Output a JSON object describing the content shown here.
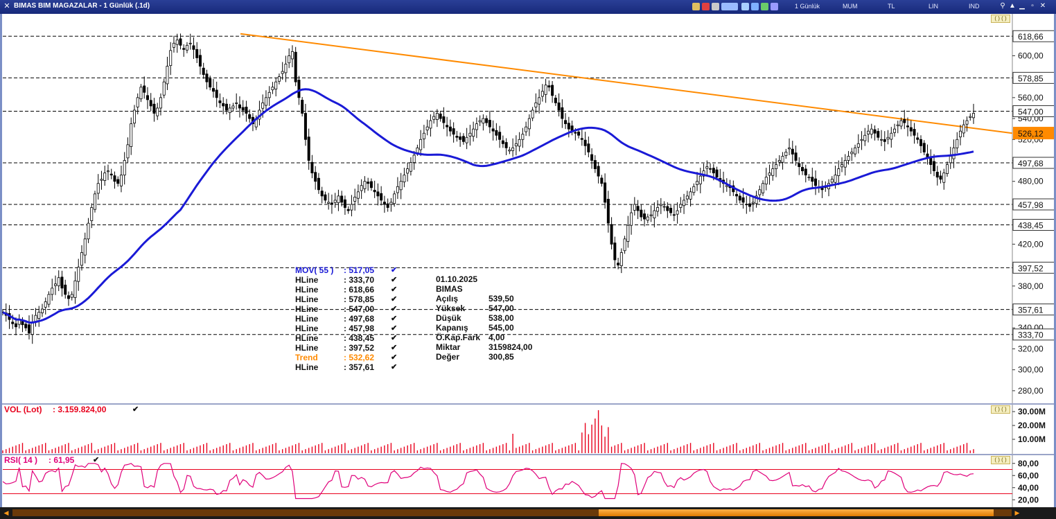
{
  "window": {
    "title": "BIMAS BIM MAGAZALAR - 1 Günlük (.1d)",
    "period_label": "1 Günlük",
    "chart_style": "MUM",
    "currency": "TL",
    "scale": "LIN",
    "ind_label": "IND"
  },
  "colors": {
    "price_up": "#000000",
    "mov": "#1a1ad6",
    "trend": "#ff8a00",
    "hline": "#000000",
    "volume": "#e8001c",
    "rsi": "#e0007a",
    "rsi_band": "#e8001c",
    "title_bar": "#17297a"
  },
  "legend": {
    "mov": {
      "name": "MOV( 55 )",
      "value": ": 517,05"
    },
    "hlines": [
      {
        "name": "HLine",
        "value": ": 333,70"
      },
      {
        "name": "HLine",
        "value": ": 618,66"
      },
      {
        "name": "HLine",
        "value": ": 578,85"
      },
      {
        "name": "HLine",
        "value": ": 547,00"
      },
      {
        "name": "HLine",
        "value": ": 497,68"
      },
      {
        "name": "HLine",
        "value": ": 457,98"
      },
      {
        "name": "HLine",
        "value": ": 438,45"
      },
      {
        "name": "HLine",
        "value": ": 397,52"
      }
    ],
    "trend": {
      "name": "Trend",
      "value": ": 532,62"
    },
    "hline_last": {
      "name": "HLine",
      "value": ": 357,61"
    }
  },
  "ohlc": {
    "date": "01.10.2025",
    "symbol": "BIMAS",
    "rows": [
      {
        "k": "Açılış",
        "v": "539,50"
      },
      {
        "k": "Yüksek",
        "v": "547,00"
      },
      {
        "k": "Düşük",
        "v": "538,00"
      },
      {
        "k": "Kapanış",
        "v": "545,00"
      },
      {
        "k": "Ö.Kap.Fark",
        "v": "4,00"
      },
      {
        "k": "Miktar",
        "v": "3159824,00"
      },
      {
        "k": "Değer",
        "v": "300,85"
      }
    ]
  },
  "volume_pane": {
    "label": "VOL (Lot)",
    "value": ": 3.159.824,00",
    "ticks": [
      "30.00M",
      "20.00M",
      "10.00M"
    ]
  },
  "rsi_pane": {
    "label": "RSI( 14 )",
    "value": ": 61,95",
    "ticks": [
      "80,00",
      "60,00",
      "40,00",
      "20,00"
    ]
  },
  "chart_data": {
    "type": "candlestick",
    "title": "BIMAS BIM MAGAZALAR - 1 Günlük (.1d)",
    "price_axis_ticks": [
      "600,00",
      "560,00",
      "540,00",
      "520,00",
      "500,00",
      "480,00",
      "420,00",
      "400,00",
      "380,00",
      "340,00",
      "320,00",
      "300,00",
      "280,00"
    ],
    "ylim": [
      268,
      640
    ],
    "hlines": [
      618.66,
      578.85,
      547.0,
      497.68,
      457.98,
      438.45,
      397.52,
      357.61,
      333.7
    ],
    "hline_labels": [
      "618,66",
      "578,85",
      "547,00",
      "497,68",
      "457,98",
      "438,45",
      "397,52",
      "357,61",
      "333,70"
    ],
    "current_price_label": "526,12",
    "trend_line": {
      "start": 621,
      "end": 526
    },
    "mov55_current": 517.05,
    "last_candle": {
      "open": 539.5,
      "high": 547.0,
      "low": 538.0,
      "close": 545.0
    },
    "close_path": [
      355,
      352,
      348,
      344,
      341,
      348,
      343,
      340,
      335,
      345,
      352,
      355,
      358,
      365,
      372,
      378,
      382,
      388,
      378,
      372,
      368,
      372,
      385,
      398,
      412,
      425,
      440,
      455,
      468,
      478,
      482,
      488,
      490,
      486,
      480,
      478,
      486,
      500,
      515,
      535,
      548,
      560,
      570,
      565,
      558,
      552,
      545,
      550,
      560,
      575,
      590,
      605,
      612,
      615,
      610,
      606,
      610,
      612,
      606,
      598,
      590,
      582,
      575,
      570,
      566,
      560,
      555,
      552,
      548,
      550,
      552,
      555,
      550,
      548,
      545,
      540,
      535,
      540,
      548,
      555,
      560,
      565,
      570,
      575,
      580,
      585,
      592,
      600,
      604,
      575,
      560,
      545,
      520,
      500,
      488,
      480,
      472,
      466,
      462,
      460,
      458,
      462,
      466,
      460,
      455,
      452,
      458,
      465,
      470,
      476,
      480,
      478,
      474,
      470,
      466,
      462,
      458,
      455,
      460,
      468,
      475,
      480,
      486,
      492,
      498,
      505,
      512,
      520,
      526,
      532,
      538,
      542,
      545,
      540,
      536,
      532,
      528,
      525,
      522,
      520,
      518,
      522,
      526,
      530,
      535,
      538,
      540,
      536,
      532,
      528,
      524,
      520,
      516,
      512,
      510,
      512,
      516,
      520,
      525,
      532,
      540,
      548,
      555,
      560,
      566,
      572,
      570,
      562,
      555,
      548,
      540,
      535,
      530,
      528,
      526,
      524,
      520,
      514,
      508,
      500,
      492,
      485,
      478,
      460,
      440,
      420,
      405,
      400,
      412,
      425,
      438,
      450,
      458,
      452,
      446,
      444,
      446,
      448,
      452,
      455,
      458,
      456,
      452,
      450,
      448,
      452,
      458,
      462,
      466,
      470,
      475,
      480,
      485,
      490,
      494,
      492,
      488,
      484,
      480,
      478,
      476,
      474,
      470,
      466,
      462,
      460,
      458,
      456,
      460,
      466,
      472,
      478,
      484,
      488,
      492,
      496,
      500,
      504,
      508,
      512,
      506,
      500,
      494,
      490,
      486,
      484,
      480,
      476,
      474,
      472,
      474,
      478,
      482,
      486,
      492,
      496,
      500,
      504,
      508,
      512,
      516,
      520,
      524,
      528,
      530,
      526,
      522,
      520,
      518,
      522,
      526,
      530,
      534,
      538,
      536,
      532,
      528,
      524,
      520,
      514,
      508,
      502,
      496,
      490,
      484,
      482,
      488,
      496,
      504,
      512,
      520,
      528,
      534,
      538,
      542,
      545
    ]
  }
}
